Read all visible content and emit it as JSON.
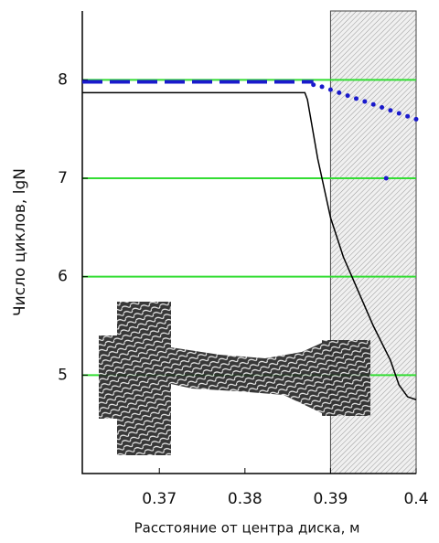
{
  "chart_data": {
    "type": "line",
    "x_label": "Расстояние от центра диска,  м",
    "y_label": "Число    циклов,  lgN",
    "xlim": [
      0.361,
      0.4
    ],
    "xticks": [
      0.37,
      0.38,
      0.39,
      0.4
    ],
    "ylim": [
      4,
      8.7
    ],
    "yticks": [
      5,
      6,
      7,
      8
    ],
    "grid": true,
    "grid_color": "#33dd33",
    "shaded_xrange": [
      0.39,
      0.4
    ],
    "series": [
      {
        "color": "#000000",
        "style": "solid",
        "x": [
          0.361,
          0.387,
          0.3873,
          0.3885,
          0.39,
          0.3915,
          0.393,
          0.395,
          0.397,
          0.398,
          0.399,
          0.4
        ],
        "values": [
          7.87,
          7.87,
          7.8,
          7.2,
          6.6,
          6.2,
          5.9,
          5.5,
          5.15,
          4.9,
          4.78,
          4.75
        ]
      },
      {
        "color": "#1a1acc",
        "style": "dashed",
        "x": [
          0.361,
          0.388
        ],
        "values": [
          7.98,
          7.98
        ]
      },
      {
        "color": "#1a1acc",
        "style": "dots",
        "x": [
          0.388,
          0.389,
          0.39,
          0.391,
          0.392,
          0.393,
          0.394,
          0.395,
          0.396,
          0.397,
          0.398,
          0.399,
          0.4,
          0.3965
        ],
        "values": [
          7.95,
          7.93,
          7.9,
          7.87,
          7.84,
          7.81,
          7.78,
          7.75,
          7.72,
          7.69,
          7.66,
          7.63,
          7.6,
          7.0
        ]
      }
    ]
  }
}
